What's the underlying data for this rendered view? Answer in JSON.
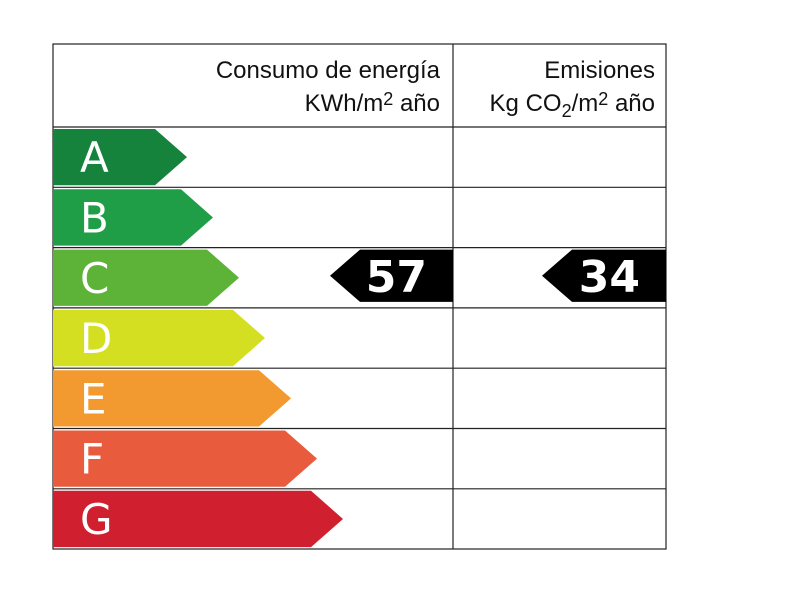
{
  "headers": [
    {
      "title": "Consumo de energía",
      "unit_parts": [
        "KWh/m",
        "2",
        " año"
      ]
    },
    {
      "title": "Emisiones",
      "unit_parts": [
        "Kg CO",
        "2",
        "/m",
        "2",
        " año"
      ]
    }
  ],
  "grades": [
    {
      "letter": "A",
      "color": "#16833c"
    },
    {
      "letter": "B",
      "color": "#1f9e47"
    },
    {
      "letter": "C",
      "color": "#5cb337"
    },
    {
      "letter": "D",
      "color": "#d4df22"
    },
    {
      "letter": "E",
      "color": "#f29a2f"
    },
    {
      "letter": "F",
      "color": "#e85b3d"
    },
    {
      "letter": "G",
      "color": "#d0202f"
    }
  ],
  "ratings": [
    {
      "value": 57,
      "grade": "C"
    },
    {
      "value": 34,
      "grade": "C"
    }
  ]
}
